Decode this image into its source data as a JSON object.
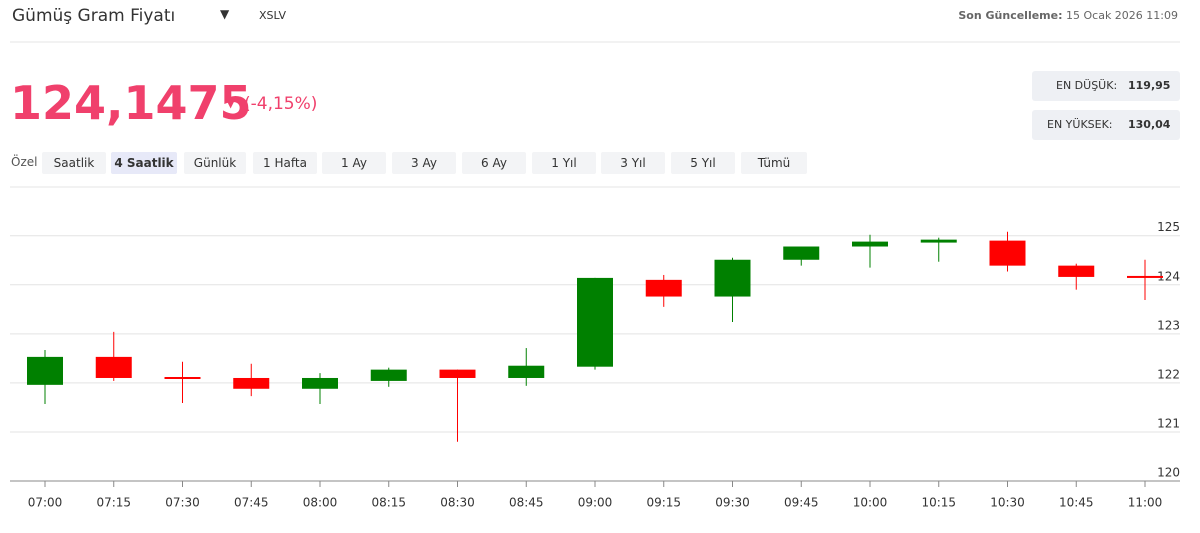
{
  "header": {
    "title": "Gümüş Gram Fiyatı",
    "code": "XSLV",
    "updated_label": "Son Güncelleme:",
    "updated_value": "15 Ocak 2026 11:09"
  },
  "price": {
    "value": "124,1475",
    "change": "(-4,15%)"
  },
  "stats": [
    {
      "label": "EN DÜŞÜK:",
      "value": "119,95"
    },
    {
      "label": "EN YÜKSEK:",
      "value": "130,04"
    }
  ],
  "range": {
    "label": "Özel",
    "buttons": [
      "Saatlik",
      "4 Saatlik",
      "Günlük",
      "1 Hafta",
      "1 Ay",
      "3 Ay",
      "6 Ay",
      "1 Yıl",
      "3 Yıl",
      "5 Yıl",
      "Tümü"
    ],
    "active": "4 Saatlik"
  },
  "chart_data": {
    "type": "candlestick",
    "categories": [
      "07:00",
      "07:15",
      "07:30",
      "07:45",
      "08:00",
      "08:15",
      "08:30",
      "08:45",
      "09:00",
      "09:15",
      "09:30",
      "09:45",
      "10:00",
      "10:15",
      "10:30",
      "10:45",
      "11:00"
    ],
    "open": [
      121.96,
      122.53,
      122.12,
      122.1,
      121.88,
      122.04,
      122.27,
      122.1,
      122.33,
      124.1,
      123.76,
      124.51,
      124.78,
      124.86,
      124.9,
      124.39,
      124.18
    ],
    "high": [
      122.67,
      123.04,
      122.43,
      122.39,
      122.2,
      122.31,
      122.27,
      122.71,
      124.14,
      124.2,
      124.55,
      124.78,
      125.02,
      124.96,
      125.08,
      124.43,
      124.51
    ],
    "low": [
      121.57,
      122.04,
      121.59,
      121.73,
      121.57,
      121.92,
      120.8,
      121.94,
      122.27,
      123.55,
      123.24,
      124.39,
      124.35,
      124.47,
      124.27,
      123.9,
      123.69
    ],
    "close": [
      122.53,
      122.1,
      122.08,
      121.88,
      122.1,
      122.27,
      122.1,
      122.35,
      124.14,
      123.76,
      124.51,
      124.78,
      124.88,
      124.92,
      124.39,
      124.16,
      124.16
    ],
    "up_color": "#008000",
    "down_color": "#ff0000",
    "ylim": [
      120,
      125.3
    ],
    "yticks": [
      120,
      121,
      122,
      123,
      124,
      125
    ],
    "grid": true
  }
}
